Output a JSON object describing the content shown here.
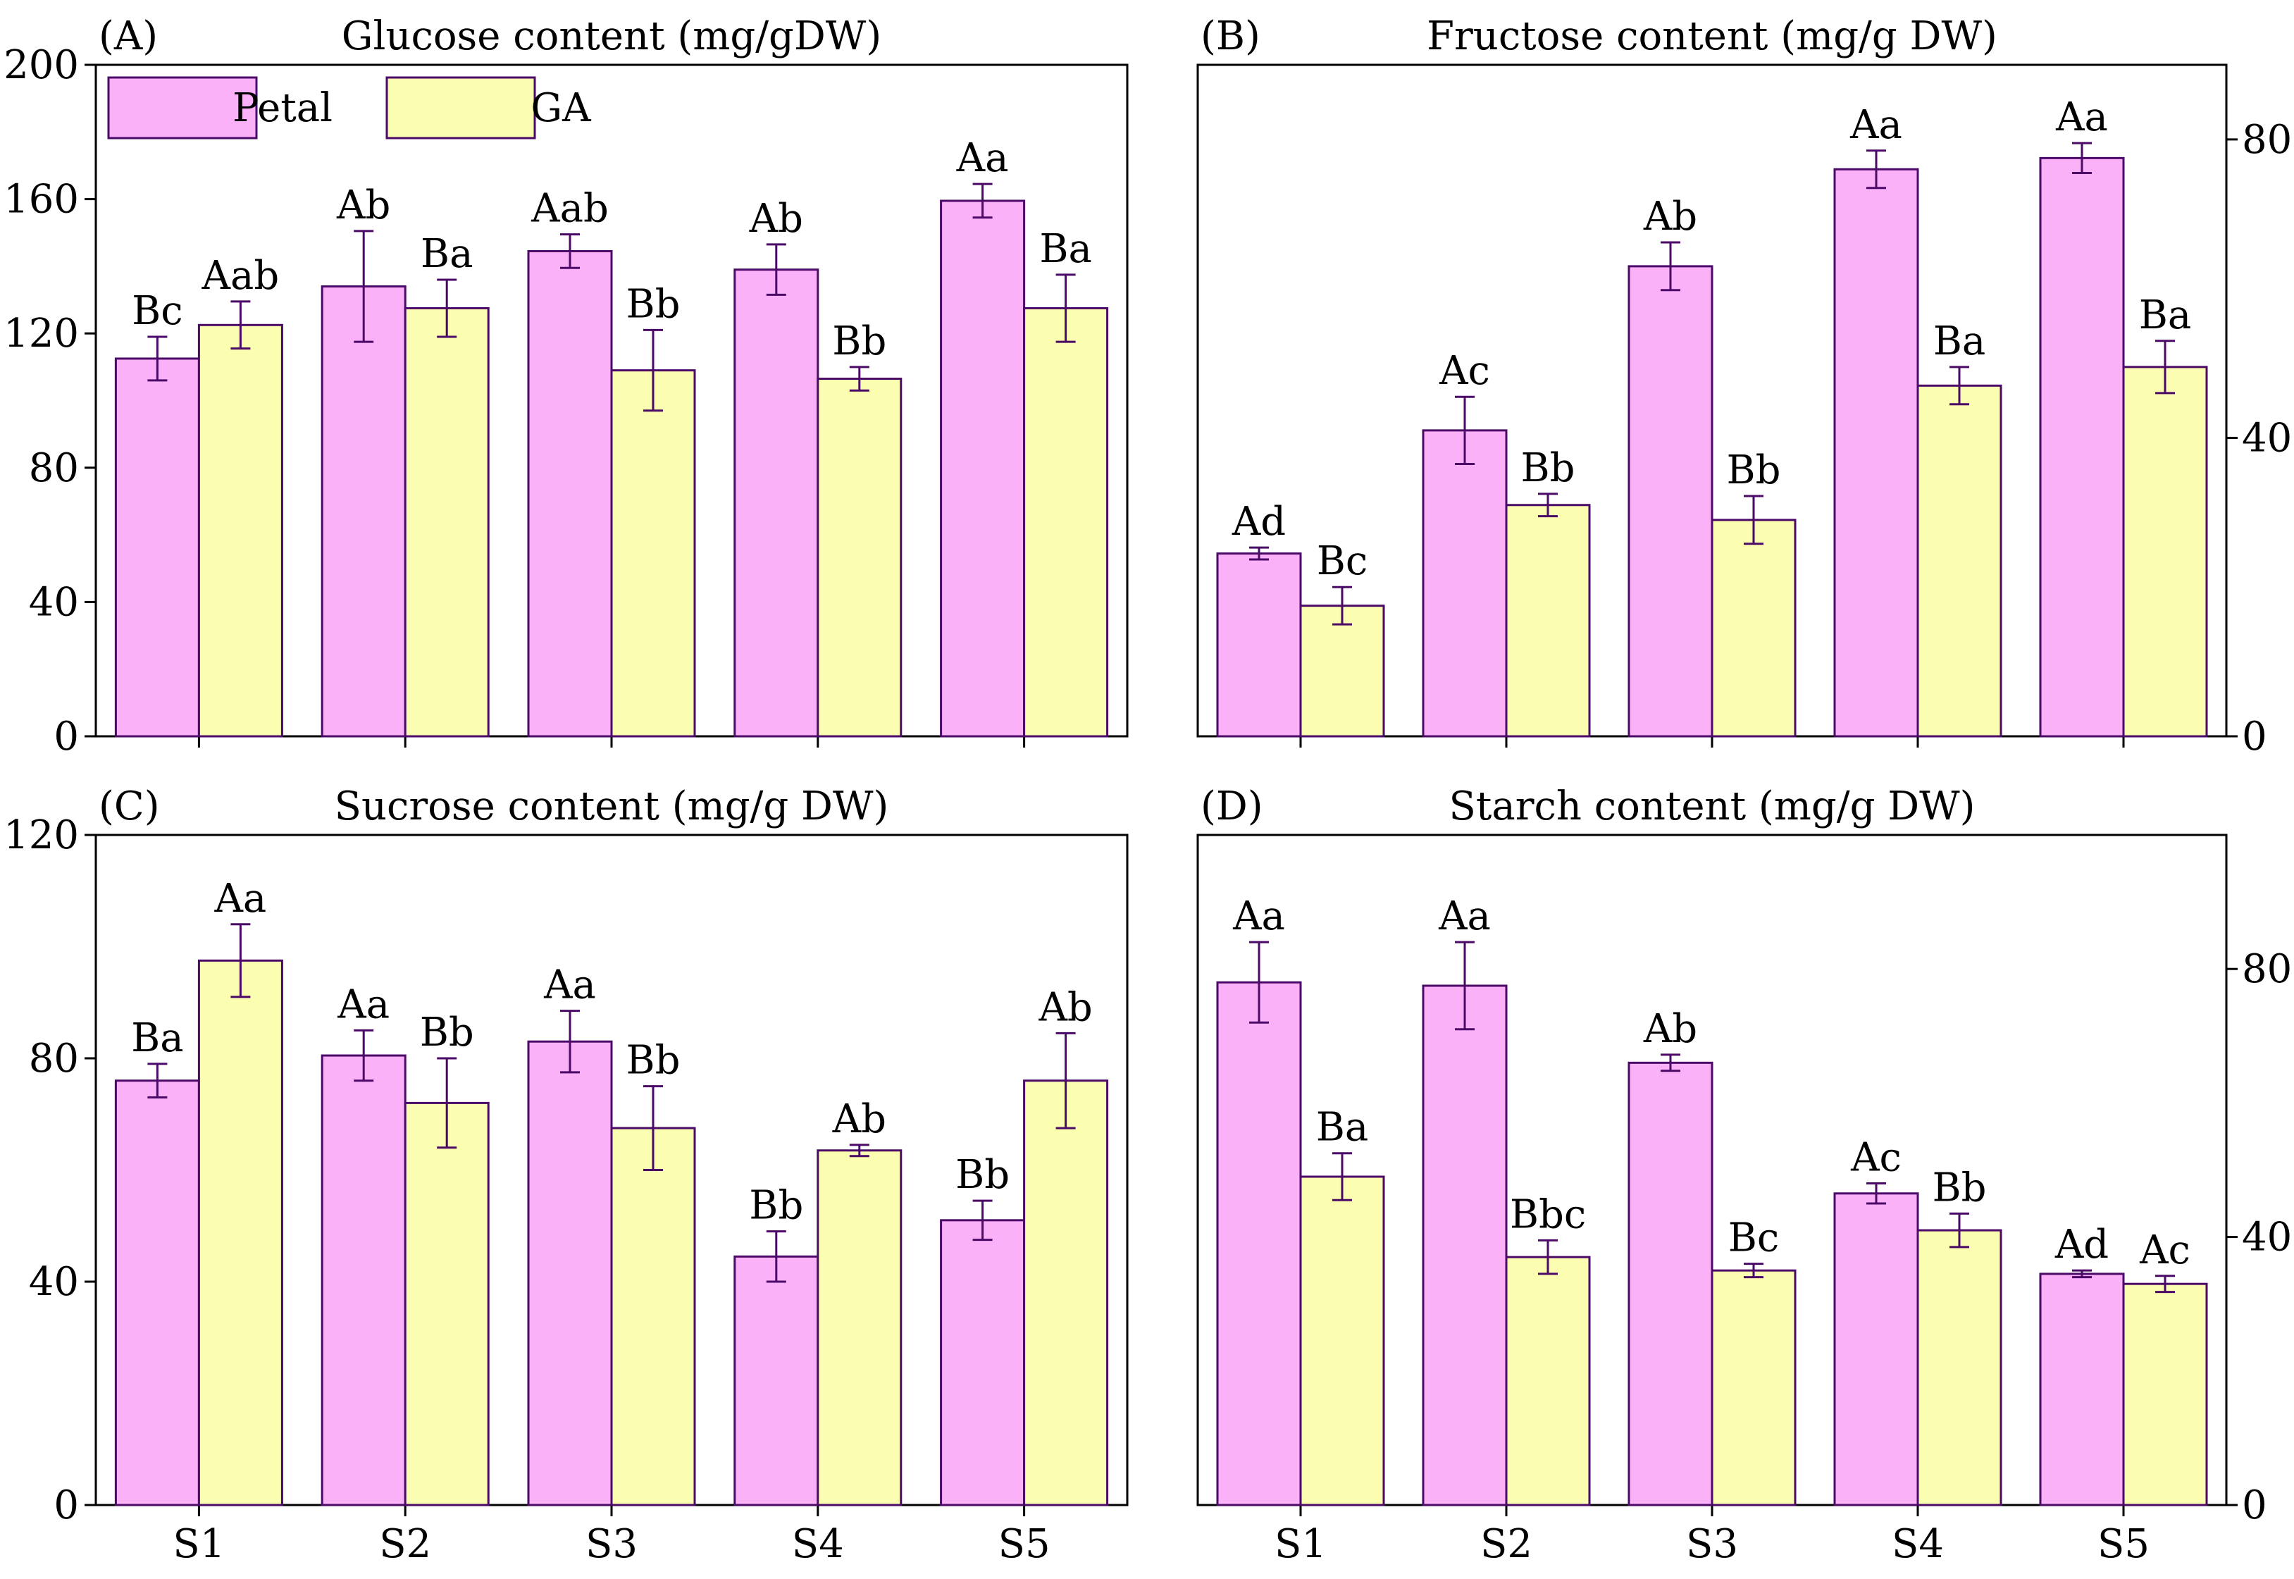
{
  "colors": {
    "petal": "#fbb1f8",
    "ga": "#fbfdb0",
    "edge": "#4b0a67",
    "errorbar": "#4b0a67",
    "axis": "#000000"
  },
  "legend": [
    {
      "name": "Petal",
      "color": "#fbb1f8"
    },
    {
      "name": "GA",
      "color": "#fbfdb0"
    }
  ],
  "chart_data": [
    {
      "type": "bar",
      "panel_label": "(A)",
      "title": "Glucose content (mg/gDW)",
      "categories": [
        "S1",
        "S2",
        "S3",
        "S4",
        "S5"
      ],
      "ylim": [
        0,
        200
      ],
      "yticks": [
        0,
        40,
        80,
        120,
        160,
        200
      ],
      "yaxis_side": "left",
      "show_legend": true,
      "series": [
        {
          "name": "Petal",
          "values": [
            112.5,
            134,
            144.5,
            139,
            159.5
          ],
          "errors": [
            6.5,
            16.5,
            5,
            7.5,
            5
          ],
          "labels": [
            "Bc",
            "Ab",
            "Aab",
            "Ab",
            "Aa"
          ]
        },
        {
          "name": "GA",
          "values": [
            122.5,
            127.5,
            109,
            106.5,
            127.5
          ],
          "errors": [
            7,
            8.5,
            12,
            3.5,
            10
          ],
          "labels": [
            "Aab",
            "Ba",
            "Bb",
            "Bb",
            "Ba"
          ]
        }
      ]
    },
    {
      "type": "bar",
      "panel_label": "(B)",
      "title": "Fructose content (mg/g DW)",
      "categories": [
        "S1",
        "S2",
        "S3",
        "S4",
        "S5"
      ],
      "ylim": [
        0,
        90
      ],
      "yticks": [
        0,
        40,
        80
      ],
      "yaxis_side": "right",
      "show_legend": false,
      "series": [
        {
          "name": "Petal",
          "values": [
            24.5,
            41,
            63,
            76,
            77.5
          ],
          "errors": [
            0.8,
            4.5,
            3.2,
            2.5,
            2
          ],
          "labels": [
            "Ad",
            "Ac",
            "Ab",
            "Aa",
            "Aa"
          ]
        },
        {
          "name": "GA",
          "values": [
            17.5,
            31,
            29,
            47,
            49.5
          ],
          "errors": [
            2.5,
            1.5,
            3.2,
            2.5,
            3.5
          ],
          "labels": [
            "Bc",
            "Bb",
            "Bb",
            "Ba",
            "Ba"
          ]
        }
      ]
    },
    {
      "type": "bar",
      "panel_label": "(C)",
      "title": "Sucrose content (mg/g DW)",
      "categories": [
        "S1",
        "S2",
        "S3",
        "S4",
        "S5"
      ],
      "ylim": [
        0,
        120
      ],
      "yticks": [
        0,
        40,
        80,
        120
      ],
      "yaxis_side": "left",
      "show_legend": false,
      "series": [
        {
          "name": "Petal",
          "values": [
            76,
            80.5,
            83,
            44.5,
            51
          ],
          "errors": [
            3,
            4.5,
            5.5,
            4.5,
            3.5
          ],
          "labels": [
            "Ba",
            "Aa",
            "Aa",
            "Bb",
            "Bb"
          ]
        },
        {
          "name": "GA",
          "values": [
            97.5,
            72,
            67.5,
            63.5,
            76
          ],
          "errors": [
            6.5,
            8,
            7.5,
            1,
            8.5
          ],
          "labels": [
            "Aa",
            "Bb",
            "Bb",
            "Ab",
            "Ab"
          ]
        }
      ]
    },
    {
      "type": "bar",
      "panel_label": "(D)",
      "title": "Starch content (mg/g DW)",
      "categories": [
        "S1",
        "S2",
        "S3",
        "S4",
        "S5"
      ],
      "ylim": [
        0,
        100
      ],
      "yticks": [
        0,
        40,
        80
      ],
      "yaxis_side": "right",
      "show_legend": false,
      "series": [
        {
          "name": "Petal",
          "values": [
            78,
            77.5,
            66,
            46.5,
            34.5
          ],
          "errors": [
            6,
            6.5,
            1.2,
            1.5,
            0.5
          ],
          "labels": [
            "Aa",
            "Aa",
            "Ab",
            "Ac",
            "Ad"
          ]
        },
        {
          "name": "GA",
          "values": [
            49,
            37,
            35,
            41,
            33
          ],
          "errors": [
            3.5,
            2.5,
            1,
            2.5,
            1.2
          ],
          "labels": [
            "Ba",
            "Bbc",
            "Bc",
            "Bb",
            "Ac"
          ]
        }
      ]
    }
  ]
}
